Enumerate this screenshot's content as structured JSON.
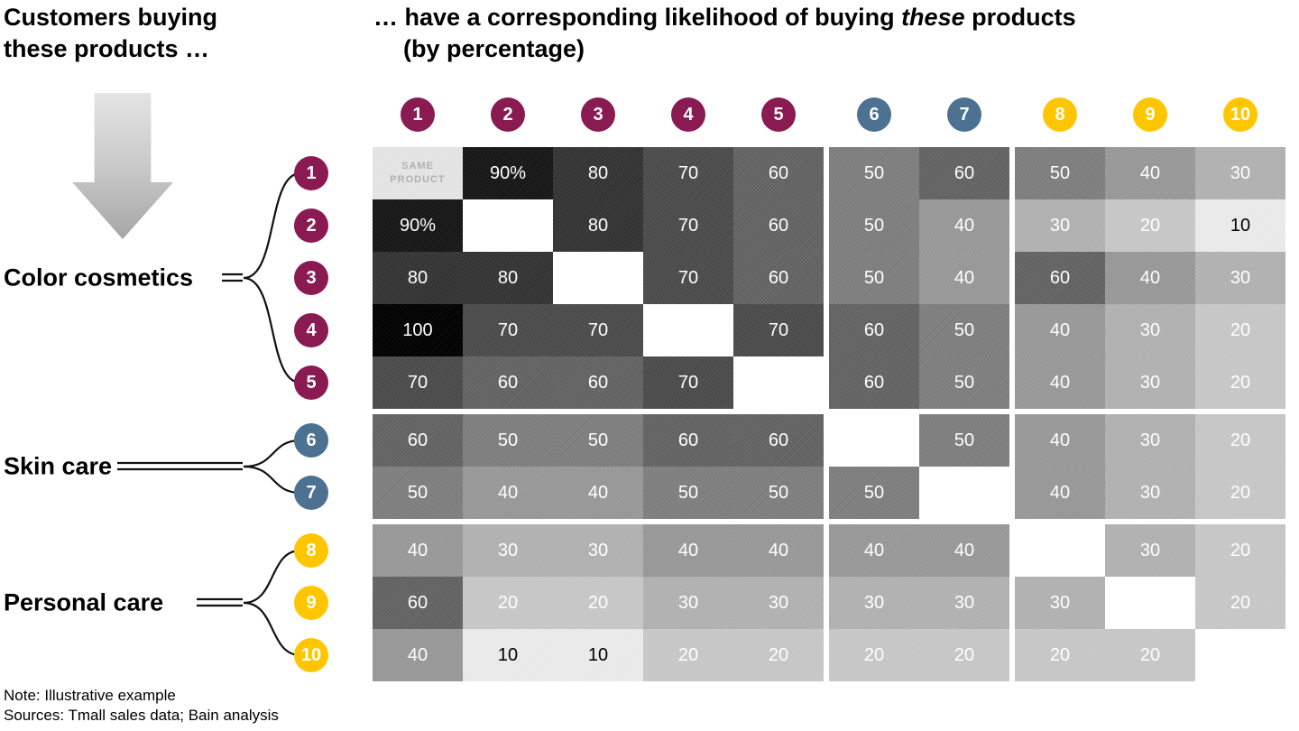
{
  "headings": {
    "left": "Customers buying these products …",
    "right_pre": "… have a corresponding likelihood of buying ",
    "right_em": "these",
    "right_post": " products",
    "right_line2": "(by percentage)"
  },
  "groups": [
    {
      "label": "Color cosmetics",
      "color": "#8A1A52",
      "rows": [
        "1",
        "2",
        "3",
        "4",
        "5"
      ]
    },
    {
      "label": "Skin care",
      "color": "#4D7190",
      "rows": [
        "6",
        "7"
      ]
    },
    {
      "label": "Personal care",
      "color": "#FFC600",
      "rows": [
        "8",
        "9",
        "10"
      ]
    }
  ],
  "axis": {
    "column_ids": [
      "1",
      "2",
      "3",
      "4",
      "5",
      "6",
      "7",
      "8",
      "9",
      "10"
    ],
    "row_ids": [
      "1",
      "2",
      "3",
      "4",
      "5",
      "6",
      "7",
      "8",
      "9",
      "10"
    ]
  },
  "matrix": {
    "same_product_label": "SAME PRODUCT",
    "display": [
      [
        "SAME PRODUCT",
        "90%",
        "80",
        "70",
        "60",
        "50",
        "60",
        "50",
        "40",
        "30"
      ],
      [
        "90%",
        "",
        "80",
        "70",
        "60",
        "50",
        "40",
        "30",
        "20",
        "10"
      ],
      [
        "80",
        "80",
        "",
        "70",
        "60",
        "50",
        "40",
        "60",
        "40",
        "30"
      ],
      [
        "100",
        "70",
        "70",
        "",
        "70",
        "60",
        "50",
        "40",
        "30",
        "20"
      ],
      [
        "70",
        "60",
        "60",
        "70",
        "",
        "60",
        "50",
        "40",
        "30",
        "20"
      ],
      [
        "60",
        "50",
        "50",
        "60",
        "60",
        "",
        "50",
        "40",
        "30",
        "20"
      ],
      [
        "50",
        "40",
        "40",
        "50",
        "50",
        "50",
        "",
        "40",
        "30",
        "20"
      ],
      [
        "40",
        "30",
        "30",
        "40",
        "40",
        "40",
        "40",
        "",
        "30",
        "20"
      ],
      [
        "60",
        "20",
        "20",
        "30",
        "30",
        "30",
        "30",
        "30",
        "",
        "20"
      ],
      [
        "40",
        "10",
        "10",
        "20",
        "20",
        "20",
        "20",
        "20",
        "20",
        ""
      ]
    ]
  },
  "palette": {
    "group_colors": {
      "color_cosmetics": "#8A1A52",
      "skin_care": "#4D7190",
      "personal_care": "#FFC600"
    },
    "cell_shades": {
      "100": "#000000",
      "90": "#161616",
      "80": "#333333",
      "70": "#4a4a4a",
      "60": "#626262",
      "50": "#7d7d7d",
      "40": "#979797",
      "30": "#b0b0b0",
      "20": "#c6c6c6",
      "10": "#e9e9e9"
    },
    "same_cell_bg": "#e3e3e3",
    "diagonal_bg": "#ffffff",
    "value_text_light": "#ffffff",
    "value_text_dark": "#000000",
    "same_text": "#b0b0b0"
  },
  "notes": [
    "Note: Illustrative example",
    "Sources: Tmall sales data; Bain analysis"
  ],
  "chart_data": {
    "type": "heatmap",
    "title": "Customers buying these products … have a corresponding likelihood of buying these products (by percentage)",
    "x_labels": [
      "1",
      "2",
      "3",
      "4",
      "5",
      "6",
      "7",
      "8",
      "9",
      "10"
    ],
    "y_labels": [
      "1",
      "2",
      "3",
      "4",
      "5",
      "6",
      "7",
      "8",
      "9",
      "10"
    ],
    "value_unit": "percent",
    "row_groups": [
      {
        "name": "Color cosmetics",
        "rows": [
          "1",
          "2",
          "3",
          "4",
          "5"
        ]
      },
      {
        "name": "Skin care",
        "rows": [
          "6",
          "7"
        ]
      },
      {
        "name": "Personal care",
        "rows": [
          "8",
          "9",
          "10"
        ]
      }
    ],
    "diagonal_note": "Cell row 1 / col 1 reads SAME PRODUCT; remaining diagonal cells are blank (white)",
    "values": [
      [
        null,
        90,
        80,
        70,
        60,
        50,
        60,
        50,
        40,
        30
      ],
      [
        90,
        null,
        80,
        70,
        60,
        50,
        40,
        30,
        20,
        10
      ],
      [
        80,
        80,
        null,
        70,
        60,
        50,
        40,
        60,
        40,
        30
      ],
      [
        100,
        70,
        70,
        null,
        70,
        60,
        50,
        40,
        30,
        20
      ],
      [
        70,
        60,
        60,
        70,
        null,
        60,
        50,
        40,
        30,
        20
      ],
      [
        60,
        50,
        50,
        60,
        60,
        null,
        50,
        40,
        30,
        20
      ],
      [
        50,
        40,
        40,
        50,
        50,
        50,
        null,
        40,
        30,
        20
      ],
      [
        40,
        30,
        30,
        40,
        40,
        40,
        40,
        null,
        30,
        20
      ],
      [
        60,
        20,
        20,
        30,
        30,
        30,
        30,
        30,
        null,
        20
      ],
      [
        40,
        10,
        10,
        20,
        20,
        20,
        20,
        20,
        20,
        null
      ]
    ]
  }
}
